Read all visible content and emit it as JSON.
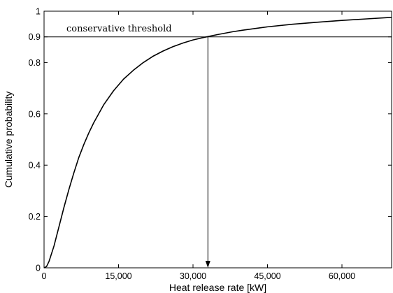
{
  "chart_data": {
    "type": "line",
    "title": "",
    "xlabel": "Heat release rate [kW]",
    "ylabel": "Cumulative probability",
    "xlim": [
      0,
      70000
    ],
    "ylim": [
      0,
      1
    ],
    "grid": false,
    "xticks": [
      {
        "value": 0,
        "label": "0"
      },
      {
        "value": 15000,
        "label": "15,000"
      },
      {
        "value": 30000,
        "label": "30,000"
      },
      {
        "value": 45000,
        "label": "45,000"
      },
      {
        "value": 60000,
        "label": "60,000"
      }
    ],
    "yticks": [
      {
        "value": 0,
        "label": "0"
      },
      {
        "value": 0.2,
        "label": "0.2"
      },
      {
        "value": 0.4,
        "label": "0.4"
      },
      {
        "value": 0.6,
        "label": "0.6"
      },
      {
        "value": 0.8,
        "label": "0.8"
      },
      {
        "value": 0.9,
        "label": "0.9"
      },
      {
        "value": 1,
        "label": "1"
      }
    ],
    "series": [
      {
        "x": [
          0,
          500,
          1000,
          2000,
          3000,
          4000,
          5000,
          6000,
          7000,
          8000,
          9000,
          10000,
          12000,
          14000,
          16000,
          18000,
          20000,
          22000,
          24000,
          26000,
          28000,
          30000,
          32000,
          33000,
          35000,
          38000,
          40000,
          45000,
          50000,
          55000,
          60000,
          65000,
          70000
        ],
        "y": [
          0,
          0.005,
          0.025,
          0.085,
          0.16,
          0.235,
          0.305,
          0.37,
          0.43,
          0.48,
          0.525,
          0.565,
          0.635,
          0.69,
          0.735,
          0.77,
          0.8,
          0.825,
          0.845,
          0.862,
          0.876,
          0.888,
          0.897,
          0.901,
          0.909,
          0.92,
          0.926,
          0.939,
          0.949,
          0.957,
          0.964,
          0.97,
          0.976
        ]
      }
    ],
    "threshold": {
      "y": 0.9,
      "x": 33000,
      "label": "conservative threshold"
    }
  }
}
